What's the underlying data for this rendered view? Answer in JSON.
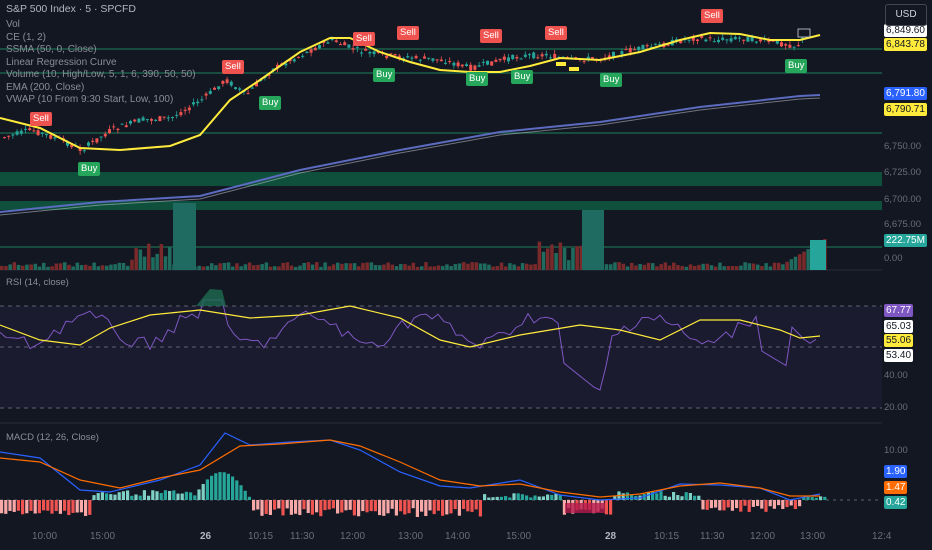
{
  "header": {
    "title": "S&P 500 Index · 5 · SPCFD"
  },
  "legend_price": [
    "Vol",
    "CE (1, 2)",
    "SSMA (50, 0, Close)",
    "Linear Regression Curve",
    "Volume (10, High/Low, 5, 1, 6, 390, 50, 50)",
    "EMA (200, Close)",
    "VWAP (10 From 9:30 Start, Low, 100)"
  ],
  "currency": "USD",
  "axis": {
    "price_ticks": [
      "6,750.00",
      "6,725.00",
      "6,700.00",
      "6,675.00"
    ],
    "rsi_ticks": [
      "40.00",
      "20.00"
    ],
    "macd_ticks": [
      "10.00"
    ],
    "volume_ticks": [
      "0.00"
    ],
    "price_badges": [
      {
        "text": "6,849.60",
        "bg": "#ffffff",
        "fg": "#131722"
      },
      {
        "text": "6,843.78",
        "bg": "#ffeb3b",
        "fg": "#131722"
      },
      {
        "text": "6,791.80",
        "bg": "#2962ff",
        "fg": "#ffffff"
      },
      {
        "text": "6,790.71",
        "bg": "#ffeb3b",
        "fg": "#131722"
      },
      {
        "text": "222.75M",
        "bg": "#26a69a",
        "fg": "#ffffff"
      }
    ],
    "rsi_badges": [
      {
        "text": "67.77",
        "bg": "#7e57c2",
        "fg": "#ffffff"
      },
      {
        "text": "65.03",
        "bg": "#ffffff",
        "fg": "#131722"
      },
      {
        "text": "55.06",
        "bg": "#ffeb3b",
        "fg": "#131722"
      },
      {
        "text": "53.40",
        "bg": "#ffffff",
        "fg": "#131722"
      }
    ],
    "macd_badges": [
      {
        "text": "1.90",
        "bg": "#2962ff",
        "fg": "#ffffff"
      },
      {
        "text": "1.47",
        "bg": "#ff6d00",
        "fg": "#ffffff"
      },
      {
        "text": "0.42",
        "bg": "#26a69a",
        "fg": "#ffffff"
      }
    ]
  },
  "signals": [
    {
      "type": "Sell",
      "text": "Sell"
    },
    {
      "type": "Sell",
      "text": "Sell"
    },
    {
      "type": "Sell",
      "text": "Sell"
    },
    {
      "type": "Sell",
      "text": "Sell"
    },
    {
      "type": "Sell",
      "text": "Sell"
    },
    {
      "type": "Sell",
      "text": "Sell"
    },
    {
      "type": "Sell",
      "text": "Sell"
    },
    {
      "type": "Buy",
      "text": "Buy"
    },
    {
      "type": "Buy",
      "text": "Buy"
    },
    {
      "type": "Buy",
      "text": "Buy"
    },
    {
      "type": "Buy",
      "text": "Buy"
    },
    {
      "type": "Buy",
      "text": "Buy"
    },
    {
      "type": "Buy",
      "text": "Buy"
    },
    {
      "type": "Buy",
      "text": "Buy"
    }
  ],
  "rsi": {
    "label": "RSI (14, close)"
  },
  "macd": {
    "label": "MACD (12, 26, Close)"
  },
  "time_axis": [
    {
      "text": "10:00",
      "bold": false
    },
    {
      "text": "15:00",
      "bold": false
    },
    {
      "text": "26",
      "bold": true
    },
    {
      "text": "10:15",
      "bold": false
    },
    {
      "text": "11:30",
      "bold": false
    },
    {
      "text": "12:00",
      "bold": false
    },
    {
      "text": "13:00",
      "bold": false
    },
    {
      "text": "14:00",
      "bold": false
    },
    {
      "text": "15:00",
      "bold": false
    },
    {
      "text": "28",
      "bold": true
    },
    {
      "text": "10:15",
      "bold": false
    },
    {
      "text": "11:30",
      "bold": false
    },
    {
      "text": "12:00",
      "bold": false
    },
    {
      "text": "13:00",
      "bold": false
    },
    {
      "text": "12:4",
      "bold": false
    }
  ],
  "colors": {
    "bull": "#26a69a",
    "bear": "#ef5350",
    "ssma": "#ffeb3b",
    "ema": "#5c6bc0",
    "rsi": "#7e57c2",
    "macd": "#2962ff",
    "signal": "#ff6d00"
  }
}
